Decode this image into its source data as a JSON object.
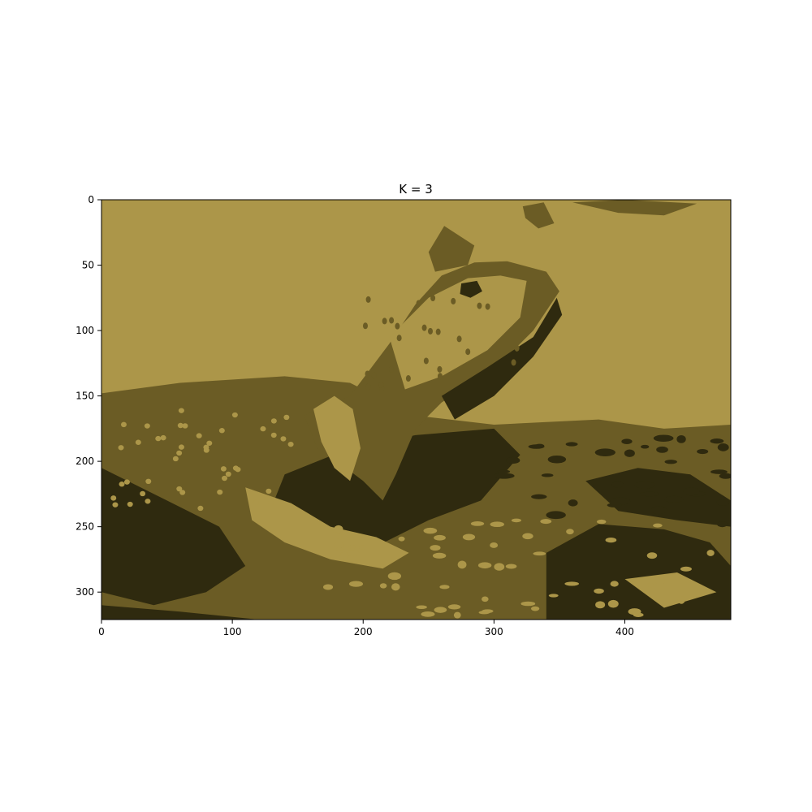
{
  "chart_data": {
    "type": "heatmap",
    "title": "K = 3",
    "xlabel": "",
    "ylabel": "",
    "xlim": [
      0,
      481
    ],
    "ylim": [
      321,
      0
    ],
    "x_ticks": [
      0,
      100,
      200,
      300,
      400
    ],
    "y_ticks": [
      0,
      50,
      100,
      150,
      200,
      250,
      300
    ],
    "x_tick_labels": [
      "0",
      "100",
      "200",
      "300",
      "400"
    ],
    "y_tick_labels": [
      "0",
      "50",
      "100",
      "150",
      "200",
      "250",
      "300"
    ],
    "grid": false,
    "legend": "none",
    "image_content": "color-quantized photograph of a lizard on rocks",
    "palette": [
      "#ac9649",
      "#6b5c25",
      "#2f2a0f"
    ],
    "regions": [
      {
        "name": "rock-mid",
        "cluster": 1,
        "points": [
          [
            0,
            148
          ],
          [
            60,
            140
          ],
          [
            140,
            135
          ],
          [
            190,
            140
          ],
          [
            240,
            165
          ],
          [
            300,
            172
          ],
          [
            380,
            168
          ],
          [
            430,
            175
          ],
          [
            481,
            172
          ],
          [
            481,
            321
          ],
          [
            0,
            321
          ]
        ]
      },
      {
        "name": "shadow-left",
        "cluster": 2,
        "points": [
          [
            0,
            205
          ],
          [
            50,
            230
          ],
          [
            90,
            250
          ],
          [
            110,
            280
          ],
          [
            80,
            300
          ],
          [
            40,
            310
          ],
          [
            0,
            300
          ]
        ]
      },
      {
        "name": "shadow-center",
        "cluster": 2,
        "points": [
          [
            140,
            210
          ],
          [
            190,
            190
          ],
          [
            240,
            180
          ],
          [
            300,
            175
          ],
          [
            320,
            195
          ],
          [
            290,
            230
          ],
          [
            250,
            245
          ],
          [
            200,
            270
          ],
          [
            160,
            255
          ],
          [
            130,
            235
          ]
        ]
      },
      {
        "name": "shadow-right",
        "cluster": 2,
        "points": [
          [
            340,
            270
          ],
          [
            380,
            248
          ],
          [
            430,
            252
          ],
          [
            465,
            262
          ],
          [
            481,
            280
          ],
          [
            481,
            321
          ],
          [
            340,
            321
          ]
        ]
      },
      {
        "name": "shadow-right-upper",
        "cluster": 2,
        "points": [
          [
            370,
            215
          ],
          [
            410,
            205
          ],
          [
            450,
            210
          ],
          [
            481,
            230
          ],
          [
            481,
            250
          ],
          [
            440,
            245
          ],
          [
            395,
            238
          ]
        ]
      },
      {
        "name": "shadow-bottom-left",
        "cluster": 2,
        "points": [
          [
            0,
            310
          ],
          [
            60,
            315
          ],
          [
            120,
            321
          ],
          [
            0,
            321
          ]
        ]
      },
      {
        "name": "lizard-body",
        "cluster": 1,
        "points": [
          [
            155,
            165
          ],
          [
            190,
            150
          ],
          [
            220,
            110
          ],
          [
            240,
            80
          ],
          [
            260,
            58
          ],
          [
            285,
            48
          ],
          [
            310,
            47
          ],
          [
            340,
            55
          ],
          [
            350,
            70
          ],
          [
            330,
            100
          ],
          [
            300,
            130
          ],
          [
            260,
            155
          ],
          [
            240,
            175
          ],
          [
            225,
            210
          ],
          [
            215,
            230
          ],
          [
            200,
            215
          ],
          [
            180,
            200
          ],
          [
            165,
            190
          ]
        ]
      },
      {
        "name": "lizard-crest",
        "cluster": 1,
        "points": [
          [
            250,
            40
          ],
          [
            262,
            20
          ],
          [
            285,
            35
          ],
          [
            280,
            50
          ],
          [
            255,
            55
          ]
        ]
      },
      {
        "name": "lizard-head-light",
        "cluster": 0,
        "points": [
          [
            220,
            105
          ],
          [
            250,
            75
          ],
          [
            280,
            60
          ],
          [
            305,
            58
          ],
          [
            325,
            62
          ],
          [
            320,
            90
          ],
          [
            295,
            115
          ],
          [
            260,
            135
          ],
          [
            232,
            145
          ]
        ]
      },
      {
        "name": "lizard-front-leg",
        "cluster": 0,
        "points": [
          [
            162,
            160
          ],
          [
            178,
            150
          ],
          [
            192,
            160
          ],
          [
            198,
            190
          ],
          [
            190,
            215
          ],
          [
            178,
            205
          ],
          [
            168,
            185
          ]
        ]
      },
      {
        "name": "lizard-arm",
        "cluster": 0,
        "points": [
          [
            110,
            220
          ],
          [
            145,
            232
          ],
          [
            175,
            250
          ],
          [
            210,
            258
          ],
          [
            235,
            270
          ],
          [
            215,
            282
          ],
          [
            175,
            275
          ],
          [
            140,
            262
          ],
          [
            115,
            245
          ]
        ]
      },
      {
        "name": "lizard-eye",
        "cluster": 2,
        "points": [
          [
            275,
            64
          ],
          [
            287,
            62
          ],
          [
            291,
            70
          ],
          [
            282,
            75
          ],
          [
            274,
            72
          ]
        ]
      },
      {
        "name": "lizard-throat-shadow",
        "cluster": 2,
        "points": [
          [
            260,
            150
          ],
          [
            295,
            128
          ],
          [
            330,
            105
          ],
          [
            348,
            75
          ],
          [
            352,
            88
          ],
          [
            330,
            120
          ],
          [
            300,
            150
          ],
          [
            270,
            168
          ]
        ]
      },
      {
        "name": "right-rock-light",
        "cluster": 0,
        "points": [
          [
            400,
            290
          ],
          [
            440,
            285
          ],
          [
            470,
            300
          ],
          [
            430,
            312
          ]
        ]
      },
      {
        "name": "top-right-patch",
        "cluster": 1,
        "points": [
          [
            360,
            2
          ],
          [
            400,
            0
          ],
          [
            455,
            3
          ],
          [
            430,
            12
          ],
          [
            395,
            10
          ]
        ]
      },
      {
        "name": "top-mid-patch",
        "cluster": 1,
        "points": [
          [
            322,
            5
          ],
          [
            338,
            2
          ],
          [
            346,
            18
          ],
          [
            334,
            22
          ],
          [
            324,
            14
          ]
        ]
      }
    ]
  }
}
